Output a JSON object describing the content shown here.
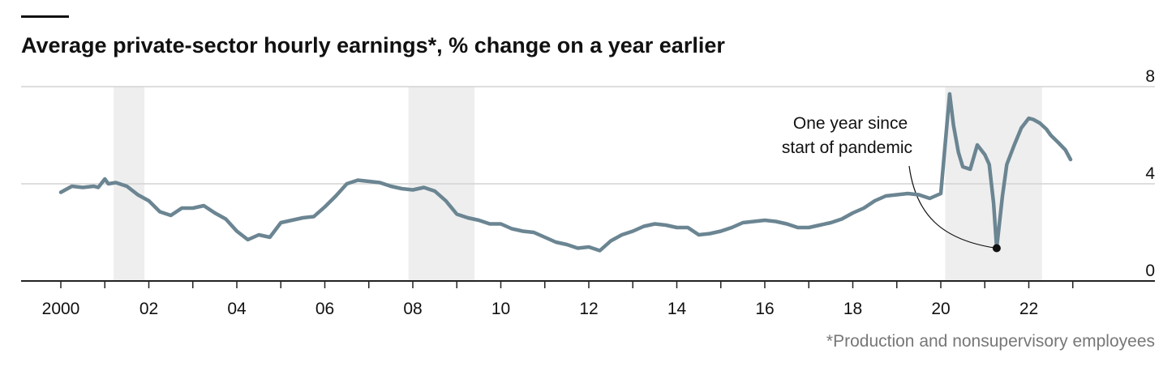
{
  "chart_data": {
    "type": "line",
    "title": "Average private-sector hourly earnings*, % change on a year earlier",
    "footnote": "*Production and nonsupervisory employees",
    "annotation": {
      "text": [
        "One year since",
        "start of pandemic"
      ],
      "x": 2021.27,
      "y": 1.35
    },
    "xlim": [
      2000,
      2024
    ],
    "ylim": [
      0,
      8
    ],
    "yticks": [
      0,
      4,
      8
    ],
    "ytick_labels": [
      "0",
      "4",
      "8"
    ],
    "xticks": [
      2000,
      2002,
      2004,
      2006,
      2008,
      2010,
      2012,
      2014,
      2016,
      2018,
      2020,
      2022
    ],
    "xtick_labels": [
      "2000",
      "02",
      "04",
      "06",
      "08",
      "10",
      "12",
      "14",
      "16",
      "18",
      "20",
      "22"
    ],
    "grid": true,
    "recessions": [
      [
        2001.2,
        2001.9
      ],
      [
        2007.9,
        2009.4
      ],
      [
        2020.1,
        2022.3
      ]
    ],
    "colors": {
      "line": "#6b8592",
      "recession": "#eeeeee",
      "grid": "#d4d4d4",
      "axis": "#222222",
      "marker": "#111111",
      "topbar": "#111111"
    },
    "series": [
      {
        "x": [
          2000.0,
          2000.25,
          2000.5,
          2000.75,
          2000.85,
          2001.0,
          2001.08,
          2001.25,
          2001.5,
          2001.75,
          2002.0,
          2002.25,
          2002.5,
          2002.75,
          2003.0,
          2003.25,
          2003.5,
          2003.75,
          2004.0,
          2004.25,
          2004.5,
          2004.75,
          2005.0,
          2005.25,
          2005.5,
          2005.75,
          2006.0,
          2006.25,
          2006.5,
          2006.75,
          2007.0,
          2007.25,
          2007.5,
          2007.75,
          2008.0,
          2008.25,
          2008.5,
          2008.75,
          2009.0,
          2009.25,
          2009.5,
          2009.75,
          2010.0,
          2010.25,
          2010.5,
          2010.75,
          2011.0,
          2011.25,
          2011.5,
          2011.75,
          2012.0,
          2012.25,
          2012.5,
          2012.75,
          2013.0,
          2013.25,
          2013.5,
          2013.75,
          2014.0,
          2014.25,
          2014.5,
          2014.75,
          2015.0,
          2015.25,
          2015.5,
          2015.75,
          2016.0,
          2016.25,
          2016.5,
          2016.75,
          2017.0,
          2017.25,
          2017.5,
          2017.75,
          2018.0,
          2018.25,
          2018.5,
          2018.75,
          2019.0,
          2019.25,
          2019.5,
          2019.75,
          2020.0,
          2020.2,
          2020.29,
          2020.4,
          2020.5,
          2020.67,
          2020.83,
          2021.0,
          2021.1,
          2021.2,
          2021.27,
          2021.4,
          2021.5,
          2021.67,
          2021.83,
          2022.0,
          2022.1,
          2022.25,
          2022.4,
          2022.5,
          2022.67,
          2022.83,
          2022.95
        ],
        "values": [
          3.65,
          3.9,
          3.85,
          3.9,
          3.85,
          4.2,
          4.0,
          4.05,
          3.9,
          3.55,
          3.3,
          2.85,
          2.7,
          3.0,
          3.0,
          3.1,
          2.8,
          2.55,
          2.05,
          1.7,
          1.9,
          1.8,
          2.4,
          2.5,
          2.6,
          2.65,
          3.05,
          3.5,
          4.0,
          4.15,
          4.1,
          4.05,
          3.9,
          3.8,
          3.75,
          3.85,
          3.7,
          3.3,
          2.75,
          2.6,
          2.5,
          2.35,
          2.35,
          2.15,
          2.05,
          2.0,
          1.8,
          1.6,
          1.5,
          1.35,
          1.4,
          1.25,
          1.65,
          1.9,
          2.05,
          2.25,
          2.35,
          2.3,
          2.2,
          2.2,
          1.9,
          1.95,
          2.05,
          2.2,
          2.4,
          2.45,
          2.5,
          2.45,
          2.35,
          2.2,
          2.2,
          2.3,
          2.4,
          2.55,
          2.8,
          3.0,
          3.3,
          3.5,
          3.55,
          3.6,
          3.55,
          3.4,
          3.6,
          7.7,
          6.4,
          5.3,
          4.7,
          4.6,
          5.6,
          5.2,
          4.8,
          3.2,
          1.35,
          3.5,
          4.8,
          5.6,
          6.3,
          6.7,
          6.65,
          6.5,
          6.25,
          6.0,
          5.7,
          5.4,
          5.0
        ]
      }
    ]
  }
}
